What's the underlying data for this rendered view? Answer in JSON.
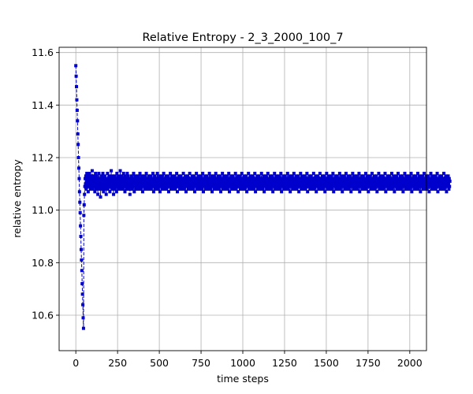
{
  "chart_data": {
    "type": "scatter",
    "title": "Relative Entropy - 2_3_2000_100_7",
    "xlabel": "time steps",
    "ylabel": "relative entropy",
    "xlim": [
      -100,
      2100
    ],
    "ylim": [
      10.465,
      11.62
    ],
    "xticks": [
      0,
      250,
      500,
      750,
      1000,
      1250,
      1500,
      1750,
      2000
    ],
    "yticks": [
      10.6,
      10.8,
      11.0,
      11.2,
      11.4,
      11.6
    ],
    "ytick_labels": [
      "10.6",
      "10.8",
      "11.0",
      "11.2",
      "11.4",
      "11.6"
    ],
    "grid": true,
    "marker": "square",
    "color": "#0000cc",
    "series": [
      {
        "name": "",
        "x_start": 0,
        "x_step": 2,
        "y": [
          11.55,
          11.51,
          11.47,
          11.42,
          11.38,
          11.34,
          11.29,
          11.25,
          11.2,
          11.16,
          11.12,
          11.07,
          11.03,
          10.99,
          10.94,
          10.9,
          10.85,
          10.81,
          10.77,
          10.72,
          10.68,
          10.64,
          10.59,
          10.55,
          10.98,
          11.02,
          11.06,
          11.09,
          11.12,
          11.1,
          11.13,
          11.08,
          11.11,
          11.14,
          11.09,
          11.12,
          11.1,
          11.07,
          11.13,
          11.11,
          11.09,
          11.14,
          11.12,
          11.1,
          11.08,
          11.11,
          11.13,
          11.09,
          11.12,
          11.15,
          11.1,
          11.08,
          11.12,
          11.11,
          11.09,
          11.13,
          11.1,
          11.07,
          11.12,
          11.14,
          11.09,
          11.11,
          11.08,
          11.13,
          11.1,
          11.12,
          11.06,
          11.09,
          11.11,
          11.14,
          11.1,
          11.08,
          11.12,
          11.09,
          11.05,
          11.11,
          11.13,
          11.1,
          11.08,
          11.12,
          11.09,
          11.14,
          11.11,
          11.07,
          11.1,
          11.12,
          11.09,
          11.13,
          11.08,
          11.11,
          11.1,
          11.06,
          11.12,
          11.09,
          11.11,
          11.14,
          11.08,
          11.1,
          11.12,
          11.09,
          11.11,
          11.13,
          11.07,
          11.1,
          11.12,
          11.09,
          11.15,
          11.11,
          11.08,
          11.1,
          11.13,
          11.09,
          11.12,
          11.06,
          11.11,
          11.1,
          11.08,
          11.13,
          11.11,
          11.09,
          11.12,
          11.1,
          11.07,
          11.14,
          11.11,
          11.09,
          11.12,
          11.1,
          11.08,
          11.13,
          11.11,
          11.09,
          11.12,
          11.15,
          11.1,
          11.08,
          11.11,
          11.13,
          11.09,
          11.1,
          11.12,
          11.08,
          11.11,
          11.14,
          11.09,
          11.12,
          11.1,
          11.07,
          11.13,
          11.11,
          11.09,
          11.12,
          11.1,
          11.08,
          11.14,
          11.11,
          11.09,
          11.13,
          11.1,
          11.12,
          11.08,
          11.11,
          11.06,
          11.1,
          11.12,
          11.09,
          11.11,
          11.13,
          11.1,
          11.08,
          11.12,
          11.09,
          11.11,
          11.14,
          11.1,
          11.07,
          11.12,
          11.09,
          11.11,
          11.13,
          11.1,
          11.08,
          11.12,
          11.1,
          11.09,
          11.11,
          11.13,
          11.08,
          11.12,
          11.1,
          11.09,
          11.11,
          11.14,
          11.1,
          11.08,
          11.12,
          11.09,
          11.11,
          11.13,
          11.1,
          11.07,
          11.12,
          11.1,
          11.09,
          11.11,
          11.13,
          11.1,
          11.08,
          11.12,
          11.09,
          11.11,
          11.14,
          11.1,
          11.08,
          11.12,
          11.1,
          11.09,
          11.11,
          11.13,
          11.1,
          11.08,
          11.12,
          11.09,
          11.11,
          11.13,
          11.1,
          11.08,
          11.12,
          11.1,
          11.09,
          11.11,
          11.14,
          11.1,
          11.07,
          11.12,
          11.09,
          11.11,
          11.13,
          11.1,
          11.08,
          11.12,
          11.1,
          11.09,
          11.11,
          11.14,
          11.1,
          11.08,
          11.12,
          11.09,
          11.11,
          11.13,
          11.1,
          11.07,
          11.12,
          11.1,
          11.09,
          11.11,
          11.13,
          11.1,
          11.08,
          11.12,
          11.09,
          11.11,
          11.14,
          11.1,
          11.08,
          11.12,
          11.1,
          11.09,
          11.11,
          11.13,
          11.1,
          11.08,
          11.12,
          11.09,
          11.11,
          11.13,
          11.1,
          11.07,
          11.12,
          11.1,
          11.09,
          11.11,
          11.14,
          11.1,
          11.08,
          11.12,
          11.09,
          11.11,
          11.13,
          11.1,
          11.08,
          11.12,
          11.1,
          11.09,
          11.11,
          11.13,
          11.1,
          11.08,
          11.12,
          11.09,
          11.11,
          11.14,
          11.1,
          11.07,
          11.12,
          11.1,
          11.09,
          11.11,
          11.13,
          11.1,
          11.08,
          11.12,
          11.09,
          11.11,
          11.13,
          11.1,
          11.08,
          11.12,
          11.1,
          11.09,
          11.11,
          11.14,
          11.1,
          11.08,
          11.12,
          11.09,
          11.11,
          11.13,
          11.1,
          11.07,
          11.12,
          11.1,
          11.09,
          11.11,
          11.13,
          11.1,
          11.08,
          11.12,
          11.09,
          11.11,
          11.14,
          11.1,
          11.08,
          11.12,
          11.1,
          11.09,
          11.11,
          11.13,
          11.1,
          11.08,
          11.12,
          11.09,
          11.11,
          11.13,
          11.1,
          11.07,
          11.12,
          11.1,
          11.09,
          11.11,
          11.14,
          11.1,
          11.08,
          11.12,
          11.09,
          11.11,
          11.13,
          11.1,
          11.08,
          11.12,
          11.1,
          11.09,
          11.11,
          11.13,
          11.1,
          11.08,
          11.12,
          11.09,
          11.11,
          11.14,
          11.1,
          11.07,
          11.12,
          11.1,
          11.09,
          11.11,
          11.13,
          11.1,
          11.08,
          11.12,
          11.09,
          11.11,
          11.13,
          11.1,
          11.08,
          11.12,
          11.1,
          11.09,
          11.11,
          11.14,
          11.1,
          11.08,
          11.12,
          11.09,
          11.11,
          11.13,
          11.1,
          11.07,
          11.12,
          11.1,
          11.09,
          11.11,
          11.13,
          11.1,
          11.08,
          11.12,
          11.09,
          11.11,
          11.14,
          11.1,
          11.08,
          11.12,
          11.1,
          11.09,
          11.11,
          11.13,
          11.1,
          11.08,
          11.12,
          11.09,
          11.11,
          11.13,
          11.1,
          11.07,
          11.12,
          11.1,
          11.09,
          11.11,
          11.14,
          11.1,
          11.08,
          11.12,
          11.09,
          11.11,
          11.13,
          11.1,
          11.08,
          11.12,
          11.1,
          11.09,
          11.11,
          11.13,
          11.1,
          11.08,
          11.12,
          11.09,
          11.11,
          11.14,
          11.1,
          11.07,
          11.12,
          11.1,
          11.09,
          11.11,
          11.13,
          11.1,
          11.08,
          11.12,
          11.09,
          11.11,
          11.13,
          11.1,
          11.08,
          11.12,
          11.1,
          11.09,
          11.11,
          11.14,
          11.1,
          11.08,
          11.12,
          11.09,
          11.11,
          11.13,
          11.1,
          11.07,
          11.12,
          11.1,
          11.09,
          11.11,
          11.13,
          11.1,
          11.08,
          11.12,
          11.09,
          11.11,
          11.14,
          11.1,
          11.08,
          11.12,
          11.1,
          11.09,
          11.11,
          11.13,
          11.1,
          11.08,
          11.12,
          11.09,
          11.11,
          11.13,
          11.1,
          11.07,
          11.12,
          11.1,
          11.09,
          11.11,
          11.14,
          11.1,
          11.08,
          11.12,
          11.09,
          11.11,
          11.13,
          11.1,
          11.08,
          11.12,
          11.1,
          11.09,
          11.11,
          11.13,
          11.1,
          11.08,
          11.12,
          11.09,
          11.11,
          11.14,
          11.1,
          11.07,
          11.12,
          11.1,
          11.09,
          11.11,
          11.13,
          11.1,
          11.08,
          11.12,
          11.09,
          11.11,
          11.13,
          11.1,
          11.08,
          11.12,
          11.1,
          11.09,
          11.11,
          11.14,
          11.1,
          11.08,
          11.12,
          11.09,
          11.11,
          11.13,
          11.1,
          11.07,
          11.12,
          11.1,
          11.09,
          11.11,
          11.13,
          11.1,
          11.08,
          11.12,
          11.09,
          11.11,
          11.14,
          11.1,
          11.08,
          11.12,
          11.1,
          11.09,
          11.11,
          11.13,
          11.1,
          11.08,
          11.12,
          11.09,
          11.11,
          11.13,
          11.1,
          11.07,
          11.12,
          11.1,
          11.09,
          11.11,
          11.14,
          11.1,
          11.08,
          11.12,
          11.09,
          11.11,
          11.13,
          11.1,
          11.08,
          11.12,
          11.1,
          11.09,
          11.11,
          11.13,
          11.1,
          11.08,
          11.12,
          11.09,
          11.11,
          11.14,
          11.1,
          11.07,
          11.12,
          11.1,
          11.09,
          11.11,
          11.13,
          11.1,
          11.08,
          11.12,
          11.09,
          11.11,
          11.13,
          11.1,
          11.08,
          11.12,
          11.1,
          11.09,
          11.11,
          11.14,
          11.1,
          11.08,
          11.12,
          11.09,
          11.11,
          11.13,
          11.1,
          11.07,
          11.12,
          11.1,
          11.09,
          11.11,
          11.13,
          11.1,
          11.08,
          11.12,
          11.09,
          11.11,
          11.14,
          11.1,
          11.08,
          11.12,
          11.1,
          11.09,
          11.11,
          11.13,
          11.1,
          11.08,
          11.12,
          11.09,
          11.11,
          11.13,
          11.1,
          11.07,
          11.12,
          11.1,
          11.09,
          11.11,
          11.14,
          11.1,
          11.08,
          11.12,
          11.09,
          11.11,
          11.13,
          11.1,
          11.08,
          11.12,
          11.1,
          11.09,
          11.11,
          11.13,
          11.1,
          11.08,
          11.12,
          11.09,
          11.11,
          11.14,
          11.1,
          11.07,
          11.12,
          11.1,
          11.09,
          11.11,
          11.13,
          11.1,
          11.08,
          11.12,
          11.09,
          11.11,
          11.13,
          11.1,
          11.08,
          11.12,
          11.1,
          11.09,
          11.11,
          11.14,
          11.1,
          11.08,
          11.12,
          11.09,
          11.11,
          11.13,
          11.1,
          11.07,
          11.12,
          11.1,
          11.09,
          11.11,
          11.13,
          11.1,
          11.08,
          11.12,
          11.09,
          11.11,
          11.14,
          11.1,
          11.08,
          11.12,
          11.1,
          11.09,
          11.11,
          11.13,
          11.1,
          11.08,
          11.12,
          11.09,
          11.11,
          11.13,
          11.1,
          11.07,
          11.12,
          11.1,
          11.09,
          11.11,
          11.14,
          11.1,
          11.08,
          11.12,
          11.09,
          11.11,
          11.13,
          11.1,
          11.08,
          11.12,
          11.1,
          11.09,
          11.11,
          11.13,
          11.1,
          11.08,
          11.12,
          11.09,
          11.11,
          11.14,
          11.1,
          11.07,
          11.12,
          11.1,
          11.09,
          11.11,
          11.13,
          11.1,
          11.08,
          11.12,
          11.09,
          11.11,
          11.13,
          11.1,
          11.08,
          11.12,
          11.1,
          11.09,
          11.11,
          11.14,
          11.1,
          11.08,
          11.12,
          11.09,
          11.11,
          11.13,
          11.1,
          11.07,
          11.12,
          11.1,
          11.09,
          11.11,
          11.13,
          11.1,
          11.08,
          11.12,
          11.09,
          11.11,
          11.14,
          11.1,
          11.08,
          11.12,
          11.1,
          11.09,
          11.11,
          11.13,
          11.1,
          11.08,
          11.12,
          11.09,
          11.11,
          11.13,
          11.1,
          11.07,
          11.12,
          11.1,
          11.09,
          11.11,
          11.14,
          11.1,
          11.08,
          11.12,
          11.09,
          11.11,
          11.13,
          11.1,
          11.08,
          11.12,
          11.1,
          11.09,
          11.11,
          11.13,
          11.1,
          11.08,
          11.12,
          11.09,
          11.11,
          11.14,
          11.1,
          11.07,
          11.12,
          11.1,
          11.09,
          11.11,
          11.13,
          11.1,
          11.08,
          11.12,
          11.09,
          11.11,
          11.13,
          11.1,
          11.08,
          11.12,
          11.1,
          11.09,
          11.11,
          11.14,
          11.1,
          11.08,
          11.12,
          11.09,
          11.11,
          11.13,
          11.1,
          11.07,
          11.12,
          11.1,
          11.09,
          11.11,
          11.13,
          11.1,
          11.08,
          11.12,
          11.09,
          11.11,
          11.14,
          11.1,
          11.08,
          11.12,
          11.1,
          11.09,
          11.11,
          11.13,
          11.1,
          11.08,
          11.12,
          11.09,
          11.11,
          11.13,
          11.1,
          11.07,
          11.12,
          11.1,
          11.09,
          11.11,
          11.14,
          11.1,
          11.08,
          11.12,
          11.09,
          11.11,
          11.13,
          11.1,
          11.08,
          11.12,
          11.1,
          11.09,
          11.11,
          11.13,
          11.1,
          11.08,
          11.12,
          11.09,
          11.11,
          11.14,
          11.1,
          11.07,
          11.12,
          11.1,
          11.09,
          11.11,
          11.13,
          11.1,
          11.08,
          11.12,
          11.09,
          11.11,
          11.13,
          11.1,
          11.08,
          11.12,
          11.1,
          11.09,
          11.11,
          11.14,
          11.1,
          11.08,
          11.12,
          11.09,
          11.11,
          11.13,
          11.1,
          11.07,
          11.12,
          11.1,
          11.09,
          11.11,
          11.13,
          11.1,
          11.08,
          11.12,
          11.09,
          11.11,
          11.14,
          11.1,
          11.08,
          11.12,
          11.1,
          11.09,
          11.11,
          11.13,
          11.1,
          11.08,
          11.12,
          11.09,
          11.11,
          11.13,
          11.1,
          11.07,
          11.12,
          11.1,
          11.09,
          11.11,
          11.14,
          11.1,
          11.08,
          11.12,
          11.09,
          11.11,
          11.13,
          11.1,
          11.08,
          11.12,
          11.1,
          11.09,
          11.11,
          11.13,
          11.1,
          11.08,
          11.12,
          11.09,
          11.11,
          11.14,
          11.1,
          11.07,
          11.12,
          11.1,
          11.09,
          11.11,
          11.13,
          11.1,
          11.08,
          11.12,
          11.09,
          11.11,
          11.13,
          11.1,
          11.08,
          11.12,
          11.1,
          11.09,
          11.11,
          11.14,
          11.1,
          11.08,
          11.12,
          11.09,
          11.11,
          11.13,
          11.1,
          11.07,
          11.12,
          11.1,
          11.09,
          11.11,
          11.13,
          11.1,
          11.08,
          11.12,
          11.09,
          11.11,
          11.14,
          11.1,
          11.08,
          11.12,
          11.1,
          11.09,
          11.11,
          11.13,
          11.1,
          11.08,
          11.12,
          11.09,
          11.11,
          11.13,
          11.1,
          11.07,
          11.12,
          11.1,
          11.09,
          11.11,
          11.14,
          11.1,
          11.08,
          11.12,
          11.09,
          11.11,
          11.13,
          11.1,
          11.08,
          11.12,
          11.1,
          11.09,
          11.11,
          11.13,
          11.1,
          11.08,
          11.12,
          11.09,
          11.11,
          11.14,
          11.1,
          11.07,
          11.12,
          11.1,
          11.09,
          11.11,
          11.13,
          11.1,
          11.08,
          11.12,
          11.09,
          11.11,
          11.13,
          11.1,
          11.08,
          11.12,
          11.1,
          11.09,
          11.11,
          11.14,
          11.1,
          11.08,
          11.12,
          11.09,
          11.11,
          11.13,
          11.1,
          11.07,
          11.12,
          11.1,
          11.09,
          11.11,
          11.13,
          11.1,
          11.08,
          11.12,
          11.09,
          11.11
        ]
      }
    ]
  }
}
